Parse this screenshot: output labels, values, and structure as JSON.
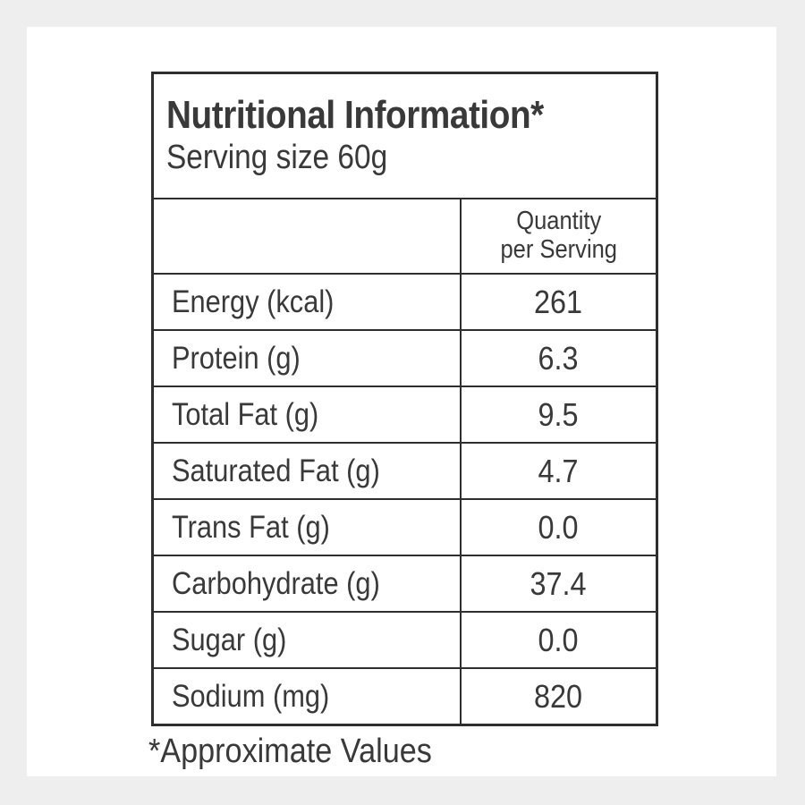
{
  "header": {
    "title": "Nutritional Information*",
    "serving_size": "Serving size 60g"
  },
  "columns": {
    "quantity_line1": "Quantity",
    "quantity_line2": "per Serving"
  },
  "rows": [
    {
      "label": "Energy (kcal)",
      "value": "261"
    },
    {
      "label": "Protein (g)",
      "value": "6.3"
    },
    {
      "label": "Total Fat (g)",
      "value": "9.5"
    },
    {
      "label": "Saturated Fat (g)",
      "value": "4.7"
    },
    {
      "label": "Trans Fat (g)",
      "value": "0.0"
    },
    {
      "label": "Carbohydrate (g)",
      "value": "37.4"
    },
    {
      "label": "Sugar (g)",
      "value": "0.0"
    },
    {
      "label": "Sodium (mg)",
      "value": "820"
    }
  ],
  "footnote": "*Approximate Values",
  "colors": {
    "page_background": "#eeeeee",
    "panel_background": "#ffffff",
    "text": "#393939",
    "border": "#2e2e2e"
  }
}
